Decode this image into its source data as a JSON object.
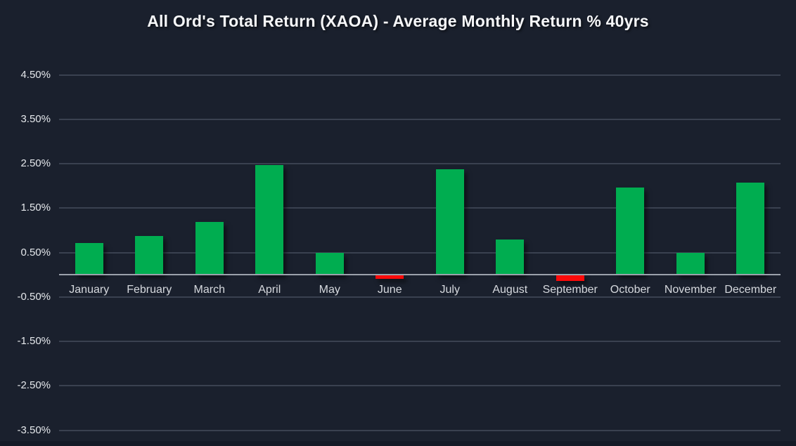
{
  "title": "All Ord's Total Return (XAOA) - Average Monthly Return % 40yrs",
  "colors": {
    "background": "#1a202d",
    "positive_bar": "#00ad50",
    "negative_bar": "#fb0a0a",
    "gridline": "#3a4150",
    "zero_axis": "#9ba1ab",
    "title_text": "#f6f7f9",
    "tick_text": "#e4e7eb",
    "month_text": "#d6d9de"
  },
  "chart_data": {
    "type": "bar",
    "title": "All Ord's Total Return (XAOA) - Average Monthly Return % 40yrs",
    "categories": [
      "January",
      "February",
      "March",
      "April",
      "May",
      "June",
      "July",
      "August",
      "September",
      "October",
      "November",
      "December"
    ],
    "values": [
      0.72,
      0.87,
      1.19,
      2.47,
      0.49,
      -0.08,
      2.37,
      0.79,
      -0.13,
      1.97,
      0.5,
      2.08
    ],
    "xlabel": "",
    "ylabel": "",
    "ylim": [
      -3.5,
      4.5
    ],
    "yticks": [
      4.5,
      3.5,
      2.5,
      1.5,
      0.5,
      -0.5,
      -1.5,
      -2.5,
      -3.5
    ],
    "ytick_labels": [
      "4.50%",
      "3.50%",
      "2.50%",
      "1.50%",
      "0.50%",
      "-0.50%",
      "-1.50%",
      "-2.50%",
      "-3.50%"
    ],
    "grid": true,
    "legend": false,
    "positive_color": "#00ad50",
    "negative_color": "#fb0a0a"
  }
}
